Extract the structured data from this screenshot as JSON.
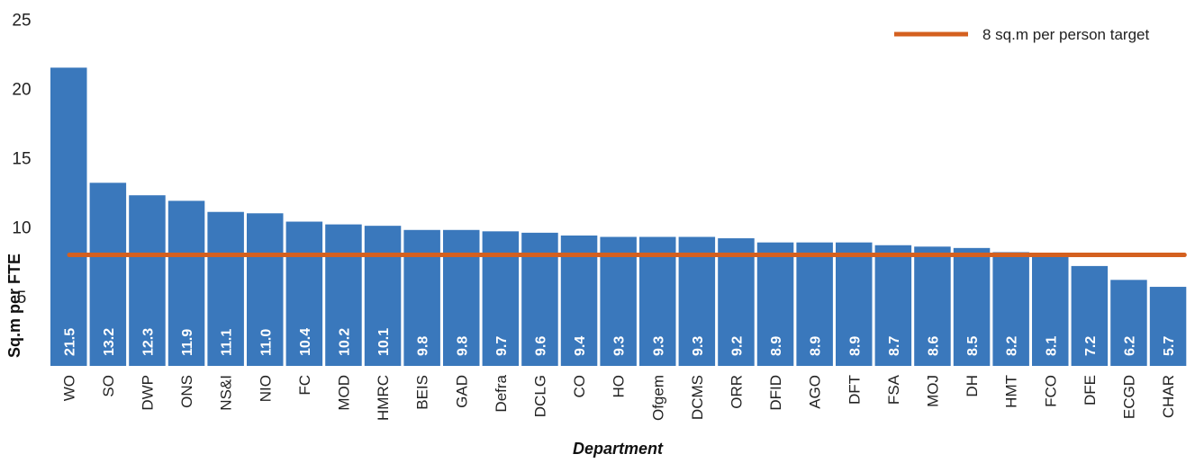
{
  "chart_data": {
    "type": "bar",
    "title": "",
    "xlabel": "Department",
    "ylabel": "Sq.m per FTE",
    "ylim": [
      0,
      25
    ],
    "yticks": [
      5,
      10,
      15,
      20,
      25
    ],
    "grid": false,
    "legend_position": "top-right",
    "categories": [
      "WO",
      "SO",
      "DWP",
      "ONS",
      "NS&I",
      "NIO",
      "FC",
      "MOD",
      "HMRC",
      "BEIS",
      "GAD",
      "Defra",
      "DCLG",
      "CO",
      "HO",
      "Ofgem",
      "DCMS",
      "ORR",
      "DFID",
      "AGO",
      "DFT",
      "FSA",
      "MOJ",
      "DH",
      "HMT",
      "FCO",
      "DFE",
      "ECGD",
      "CHAR"
    ],
    "values": [
      21.5,
      13.2,
      12.3,
      11.9,
      11.1,
      11.0,
      10.4,
      10.2,
      10.1,
      9.8,
      9.8,
      9.7,
      9.6,
      9.4,
      9.3,
      9.3,
      9.3,
      9.2,
      8.9,
      8.9,
      8.9,
      8.7,
      8.6,
      8.5,
      8.2,
      8.1,
      7.2,
      6.2,
      5.7
    ],
    "data_labels": [
      "21.5",
      "13.2",
      "12.3",
      "11.9",
      "11.1",
      "11.0",
      "10.4",
      "10.2",
      "10.1",
      "9.8",
      "9.8",
      "9.7",
      "9.6",
      "9.4",
      "9.3",
      "9.3",
      "9.3",
      "9.2",
      "8.9",
      "8.9",
      "8.9",
      "8.7",
      "8.6",
      "8.5",
      "8.2",
      "8.1",
      "7.2",
      "6.2",
      "5.7"
    ],
    "reference_line": {
      "name": "8 sq.m per person target",
      "value": 8,
      "color": "#d4601f"
    },
    "bar_color": "#3a78bc"
  }
}
